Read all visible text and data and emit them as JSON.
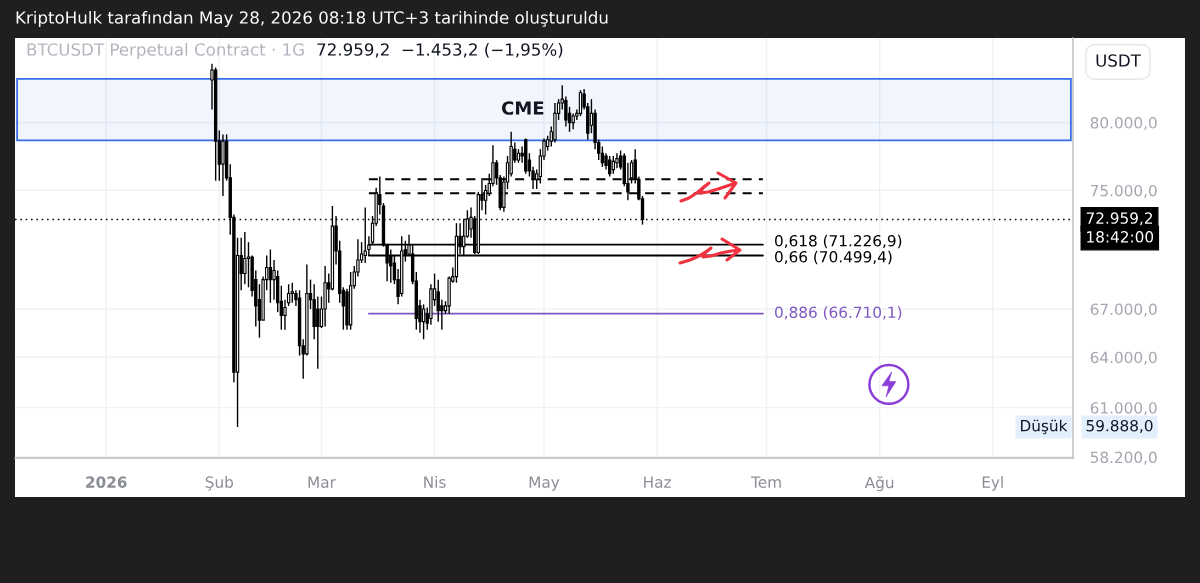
{
  "chart_data": {
    "type": "candlestick",
    "title": "KriptoHulk tarafından May 28, 2026 08:18 UTC+3 tarihinde oluşturuldu",
    "subtitle": "BTCUSDT Perpetual Contract · 1G",
    "ylabel": "USDT",
    "annotations": [
      "72.959,2  −1.453,2 (−1,95%)",
      "18:42:00",
      "Düşük",
      "59.888,0"
    ],
    "color": "#000000",
    "x": [
      "2026-01-30",
      "2026-01-31",
      "2026-02-01",
      "2026-02-02",
      "2026-02-03",
      "2026-02-04",
      "2026-02-05",
      "2026-02-06",
      "2026-02-07",
      "2026-02-08",
      "2026-02-09",
      "2026-02-10",
      "2026-02-11",
      "2026-02-12",
      "2026-02-13",
      "2026-02-14",
      "2026-02-15",
      "2026-02-16",
      "2026-02-17",
      "2026-02-18",
      "2026-02-19",
      "2026-02-20",
      "2026-02-21",
      "2026-02-22",
      "2026-02-23",
      "2026-02-24",
      "2026-02-25",
      "2026-02-26",
      "2026-02-27",
      "2026-02-28",
      "2026-03-01",
      "2026-03-02",
      "2026-03-03",
      "2026-03-04",
      "2026-03-05",
      "2026-03-06",
      "2026-03-07",
      "2026-03-08",
      "2026-03-09",
      "2026-03-10",
      "2026-03-11",
      "2026-03-12",
      "2026-03-13",
      "2026-03-14",
      "2026-03-15",
      "2026-03-16",
      "2026-03-17",
      "2026-03-18",
      "2026-03-19",
      "2026-03-20",
      "2026-03-21",
      "2026-03-22",
      "2026-03-23",
      "2026-03-24",
      "2026-03-25",
      "2026-03-26",
      "2026-03-27",
      "2026-03-28",
      "2026-03-29",
      "2026-03-30",
      "2026-03-31",
      "2026-04-01",
      "2026-04-02",
      "2026-04-03",
      "2026-04-04",
      "2026-04-05",
      "2026-04-06",
      "2026-04-07",
      "2026-04-08",
      "2026-04-09",
      "2026-04-10",
      "2026-04-11",
      "2026-04-12",
      "2026-04-13",
      "2026-04-14",
      "2026-04-15",
      "2026-04-16",
      "2026-04-17",
      "2026-04-18",
      "2026-04-19",
      "2026-04-20",
      "2026-04-21",
      "2026-04-22",
      "2026-04-23",
      "2026-04-24",
      "2026-04-25",
      "2026-04-26",
      "2026-04-27",
      "2026-04-28",
      "2026-04-29",
      "2026-04-30",
      "2026-05-01",
      "2026-05-02",
      "2026-05-03",
      "2026-05-04",
      "2026-05-05",
      "2026-05-06",
      "2026-05-07",
      "2026-05-08",
      "2026-05-09",
      "2026-05-10",
      "2026-05-11",
      "2026-05-12",
      "2026-05-13",
      "2026-05-14",
      "2026-05-15",
      "2026-05-16",
      "2026-05-17",
      "2026-05-18",
      "2026-05-19",
      "2026-05-20",
      "2026-05-21",
      "2026-05-22",
      "2026-05-23",
      "2026-05-24",
      "2026-05-25",
      "2026-05-26",
      "2026-05-27",
      "2026-05-28"
    ],
    "ohlc": [
      [
        83300,
        84600,
        81000,
        84100
      ],
      [
        84100,
        84300,
        75700,
        78600
      ],
      [
        78600,
        79400,
        75700,
        76900
      ],
      [
        76900,
        79100,
        74600,
        78600
      ],
      [
        78600,
        79100,
        75700,
        75900
      ],
      [
        75900,
        76900,
        71900,
        73100
      ],
      [
        73100,
        73300,
        62500,
        63100
      ],
      [
        63100,
        71700,
        59888,
        70500
      ],
      [
        70500,
        71700,
        68200,
        69300
      ],
      [
        69300,
        72100,
        68600,
        70300
      ],
      [
        70300,
        71400,
        68400,
        70400
      ],
      [
        70400,
        70500,
        67800,
        68200
      ],
      [
        68900,
        69500,
        65900,
        67200
      ],
      [
        67600,
        68600,
        65200,
        66300
      ],
      [
        66300,
        69100,
        66300,
        68900
      ],
      [
        68900,
        70500,
        68200,
        69700
      ],
      [
        69700,
        70900,
        67400,
        68900
      ],
      [
        68900,
        70200,
        67600,
        69500
      ],
      [
        69100,
        69500,
        66800,
        67400
      ],
      [
        67500,
        68500,
        65700,
        66600
      ],
      [
        66600,
        67600,
        65700,
        67100
      ],
      [
        67400,
        68600,
        67200,
        68000
      ],
      [
        68000,
        68700,
        67400,
        68100
      ],
      [
        68000,
        68200,
        67200,
        67600
      ],
      [
        67700,
        68200,
        64100,
        64700
      ],
      [
        64700,
        65100,
        62700,
        64200
      ],
      [
        64200,
        69900,
        64100,
        68000
      ],
      [
        68000,
        68900,
        67000,
        67600
      ],
      [
        67600,
        68600,
        65100,
        65900
      ],
      [
        67000,
        67800,
        63300,
        65900
      ],
      [
        65900,
        67800,
        65800,
        67000
      ],
      [
        67000,
        69800,
        65900,
        68700
      ],
      [
        68700,
        69300,
        67400,
        68300
      ],
      [
        68300,
        73900,
        68200,
        72500
      ],
      [
        72500,
        73200,
        69900,
        70800
      ],
      [
        70800,
        71500,
        67400,
        68000
      ],
      [
        68200,
        68400,
        65700,
        67200
      ],
      [
        68100,
        68300,
        65700,
        66000
      ],
      [
        66000,
        69400,
        65700,
        68500
      ],
      [
        68500,
        69800,
        68300,
        69400
      ],
      [
        69400,
        71600,
        69100,
        70200
      ],
      [
        70200,
        71400,
        70000,
        70600
      ],
      [
        70500,
        73800,
        70000,
        70800
      ],
      [
        70900,
        71800,
        70500,
        71200
      ],
      [
        71400,
        73200,
        71200,
        72700
      ],
      [
        72700,
        75200,
        72500,
        74800
      ],
      [
        74700,
        76000,
        73300,
        74000
      ],
      [
        73900,
        74100,
        71100,
        71200
      ],
      [
        71200,
        71300,
        68800,
        70000
      ],
      [
        70500,
        70900,
        68700,
        69800
      ],
      [
        70000,
        70500,
        68600,
        68900
      ],
      [
        68900,
        69600,
        67300,
        67800
      ],
      [
        68000,
        71800,
        67800,
        70800
      ],
      [
        70900,
        71500,
        70100,
        70500
      ],
      [
        70600,
        71900,
        70500,
        71200
      ],
      [
        70600,
        71200,
        68600,
        68800
      ],
      [
        68800,
        69400,
        65700,
        66400
      ],
      [
        67200,
        67600,
        65500,
        66200
      ],
      [
        66200,
        67300,
        65100,
        67000
      ],
      [
        66700,
        67100,
        65700,
        66100
      ],
      [
        66400,
        68600,
        66000,
        68300
      ],
      [
        67600,
        69300,
        67200,
        68300
      ],
      [
        68100,
        68900,
        66200,
        66900
      ],
      [
        67200,
        67600,
        65700,
        66900
      ],
      [
        66900,
        67500,
        66700,
        67200
      ],
      [
        67200,
        69100,
        66700,
        69000
      ],
      [
        68800,
        69700,
        68700,
        69100
      ],
      [
        69100,
        72700,
        68700,
        71800
      ],
      [
        71800,
        72700,
        70600,
        71100
      ],
      [
        71100,
        73000,
        70500,
        71800
      ],
      [
        71800,
        73600,
        71700,
        73000
      ],
      [
        72300,
        73800,
        71700,
        73100
      ],
      [
        73000,
        73200,
        70600,
        70700
      ],
      [
        70700,
        74900,
        70600,
        74700
      ],
      [
        74700,
        75900,
        73600,
        74300
      ],
      [
        74300,
        75400,
        73300,
        75000
      ],
      [
        74800,
        76200,
        74600,
        75500
      ],
      [
        75500,
        78300,
        75300,
        77000
      ],
      [
        77000,
        77200,
        75400,
        75900
      ],
      [
        75900,
        76100,
        73600,
        73800
      ],
      [
        73800,
        76000,
        73500,
        75600
      ],
      [
        75600,
        77500,
        75100,
        77000
      ],
      [
        76200,
        79300,
        76000,
        78200
      ],
      [
        78000,
        78500,
        77000,
        77200
      ],
      [
        77200,
        78000,
        77000,
        77700
      ],
      [
        77700,
        78200,
        77000,
        77500
      ],
      [
        78700,
        78800,
        76200,
        76400
      ],
      [
        77200,
        77700,
        76000,
        76400
      ],
      [
        76400,
        76700,
        75100,
        75800
      ],
      [
        75800,
        76500,
        75100,
        76200
      ],
      [
        76000,
        78000,
        75500,
        77500
      ],
      [
        77500,
        78800,
        77200,
        78600
      ],
      [
        78200,
        79000,
        77900,
        78700
      ],
      [
        78600,
        79700,
        78200,
        79300
      ],
      [
        78700,
        81500,
        78500,
        80700
      ],
      [
        80700,
        81800,
        80200,
        81500
      ],
      [
        81500,
        82900,
        81000,
        81800
      ],
      [
        81700,
        82000,
        79700,
        80200
      ],
      [
        80700,
        81200,
        79300,
        80000
      ],
      [
        80000,
        80700,
        79500,
        80500
      ],
      [
        80500,
        81000,
        80200,
        80700
      ],
      [
        80700,
        82500,
        80500,
        82300
      ],
      [
        82200,
        82600,
        81000,
        81200
      ],
      [
        81200,
        81500,
        78700,
        79200
      ],
      [
        79800,
        81800,
        79200,
        80700
      ],
      [
        80700,
        81000,
        78000,
        78500
      ],
      [
        78500,
        78700,
        77200,
        77700
      ],
      [
        77700,
        78200,
        76700,
        77000
      ],
      [
        77500,
        77700,
        76500,
        76800
      ],
      [
        77200,
        77500,
        76000,
        76200
      ],
      [
        76500,
        77500,
        76200,
        77100
      ],
      [
        77000,
        77700,
        76600,
        77300
      ],
      [
        77500,
        77900,
        76500,
        76700
      ],
      [
        77500,
        77700,
        75300,
        75500
      ],
      [
        75500,
        77000,
        74300,
        74900
      ],
      [
        75900,
        77200,
        75500,
        77000
      ],
      [
        77200,
        78000,
        75500,
        75800
      ],
      [
        75800,
        76000,
        74300,
        74400
      ],
      [
        74400,
        74600,
        72600,
        72959.2
      ]
    ],
    "series": [
      {
        "type": "line",
        "x": [
          "2026-03-14",
          "2026-06-30"
        ],
        "values": [
          75800,
          75800
        ],
        "color": "#000000",
        "line_style": "dashed"
      },
      {
        "type": "line",
        "x": [
          "2026-03-14",
          "2026-06-30"
        ],
        "values": [
          74800,
          74800
        ],
        "color": "#000000",
        "line_style": "dashed"
      },
      {
        "type": "line",
        "name": "0,618 (71.226,9)",
        "x": [
          "2026-03-14",
          "2026-06-30"
        ],
        "values": [
          71226.9,
          71226.9
        ],
        "color": "#000000"
      },
      {
        "type": "line",
        "name": "0,66 (70.499,4)",
        "x": [
          "2026-03-14",
          "2026-06-30"
        ],
        "values": [
          70499.4,
          70499.4
        ],
        "color": "#000000"
      },
      {
        "type": "line",
        "name": "0,886 (66.710,1)",
        "x": [
          "2026-03-14",
          "2026-06-30"
        ],
        "values": [
          66710.1,
          66710.1
        ],
        "color": "#7e57c2"
      }
    ],
    "ref_lines": [
      {
        "axis": "y",
        "value": 72959.2,
        "label": "72.959,2",
        "color": "#000000",
        "line_style": "dotted"
      }
    ],
    "bands": [
      {
        "axis": "y",
        "from": 78650,
        "to": 83400,
        "label": "CME",
        "color": "#3a6ee8"
      }
    ],
    "log": true,
    "grid": true,
    "xlim": [
      "2025-12-07",
      "2026-09-23"
    ],
    "ylim": [
      58150,
      86700
    ],
    "xticks": [
      {
        "value": "2026-01-01",
        "label": "2026"
      },
      {
        "value": "2026-02-01",
        "label": "Şub"
      },
      {
        "value": "2026-03-01",
        "label": "Mar"
      },
      {
        "value": "2026-04-01",
        "label": "Nis"
      },
      {
        "value": "2026-05-01",
        "label": "May"
      },
      {
        "value": "2026-06-01",
        "label": "Haz"
      },
      {
        "value": "2026-07-01",
        "label": "Tem"
      },
      {
        "value": "2026-08-01",
        "label": "Ağu"
      },
      {
        "value": "2026-09-01",
        "label": "Eyl"
      }
    ],
    "yticks": [
      {
        "value": 80000,
        "label": "80.000,0"
      },
      {
        "value": 75000,
        "label": "75.000,0"
      },
      {
        "value": 67000,
        "label": "67.000,0"
      },
      {
        "value": 64000,
        "label": "64.000,0"
      },
      {
        "value": 61000,
        "label": "61.000,0"
      },
      {
        "value": 58200,
        "label": "58.200,0"
      }
    ]
  }
}
